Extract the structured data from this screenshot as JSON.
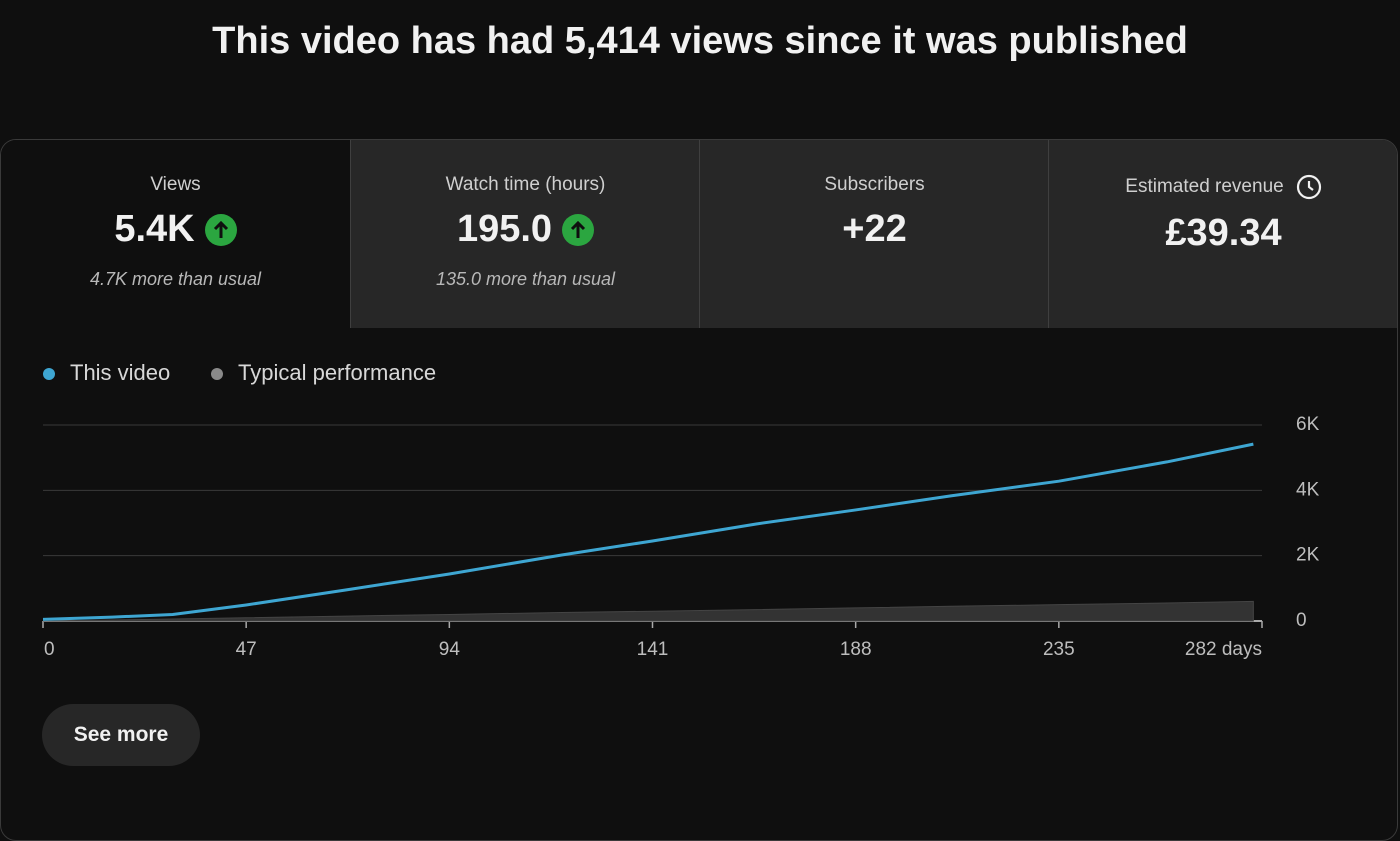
{
  "header": {
    "title": "This video has had 5,414 views since it was published"
  },
  "cards": [
    {
      "label": "Views",
      "value": "5.4K",
      "note": "4.7K more than usual"
    },
    {
      "label": "Watch time (hours)",
      "value": "195.0",
      "note": "135.0 more than usual"
    },
    {
      "label": "Subscribers",
      "value": "+22"
    },
    {
      "label": "Estimated revenue",
      "value": "£39.34"
    }
  ],
  "chart_data": {
    "type": "line",
    "x": [
      0,
      16,
      30,
      47,
      70,
      94,
      120,
      141,
      165,
      188,
      210,
      235,
      260,
      280
    ],
    "series": [
      {
        "name": "This video",
        "color": "#3ea6d2",
        "values": [
          50,
          120,
          200,
          490,
          950,
          1440,
          2020,
          2450,
          2970,
          3400,
          3830,
          4280,
          4870,
          5414
        ]
      },
      {
        "name": "Typical performance",
        "color": "#8a8a8a",
        "values": [
          0,
          30,
          60,
          100,
          150,
          200,
          260,
          300,
          350,
          400,
          450,
          500,
          550,
          600
        ]
      }
    ],
    "xlim": [
      0,
      282
    ],
    "xticks": [
      0,
      47,
      94,
      141,
      188,
      235,
      {
        "value": 282,
        "label": "282 days"
      }
    ],
    "ylim": [
      0,
      6000
    ],
    "yticks": [
      0,
      {
        "value": 2000,
        "label": "2K"
      },
      {
        "value": 4000,
        "label": "4K"
      },
      {
        "value": 6000,
        "label": "6K"
      }
    ],
    "grid": true
  },
  "button": {
    "label": "See more"
  }
}
